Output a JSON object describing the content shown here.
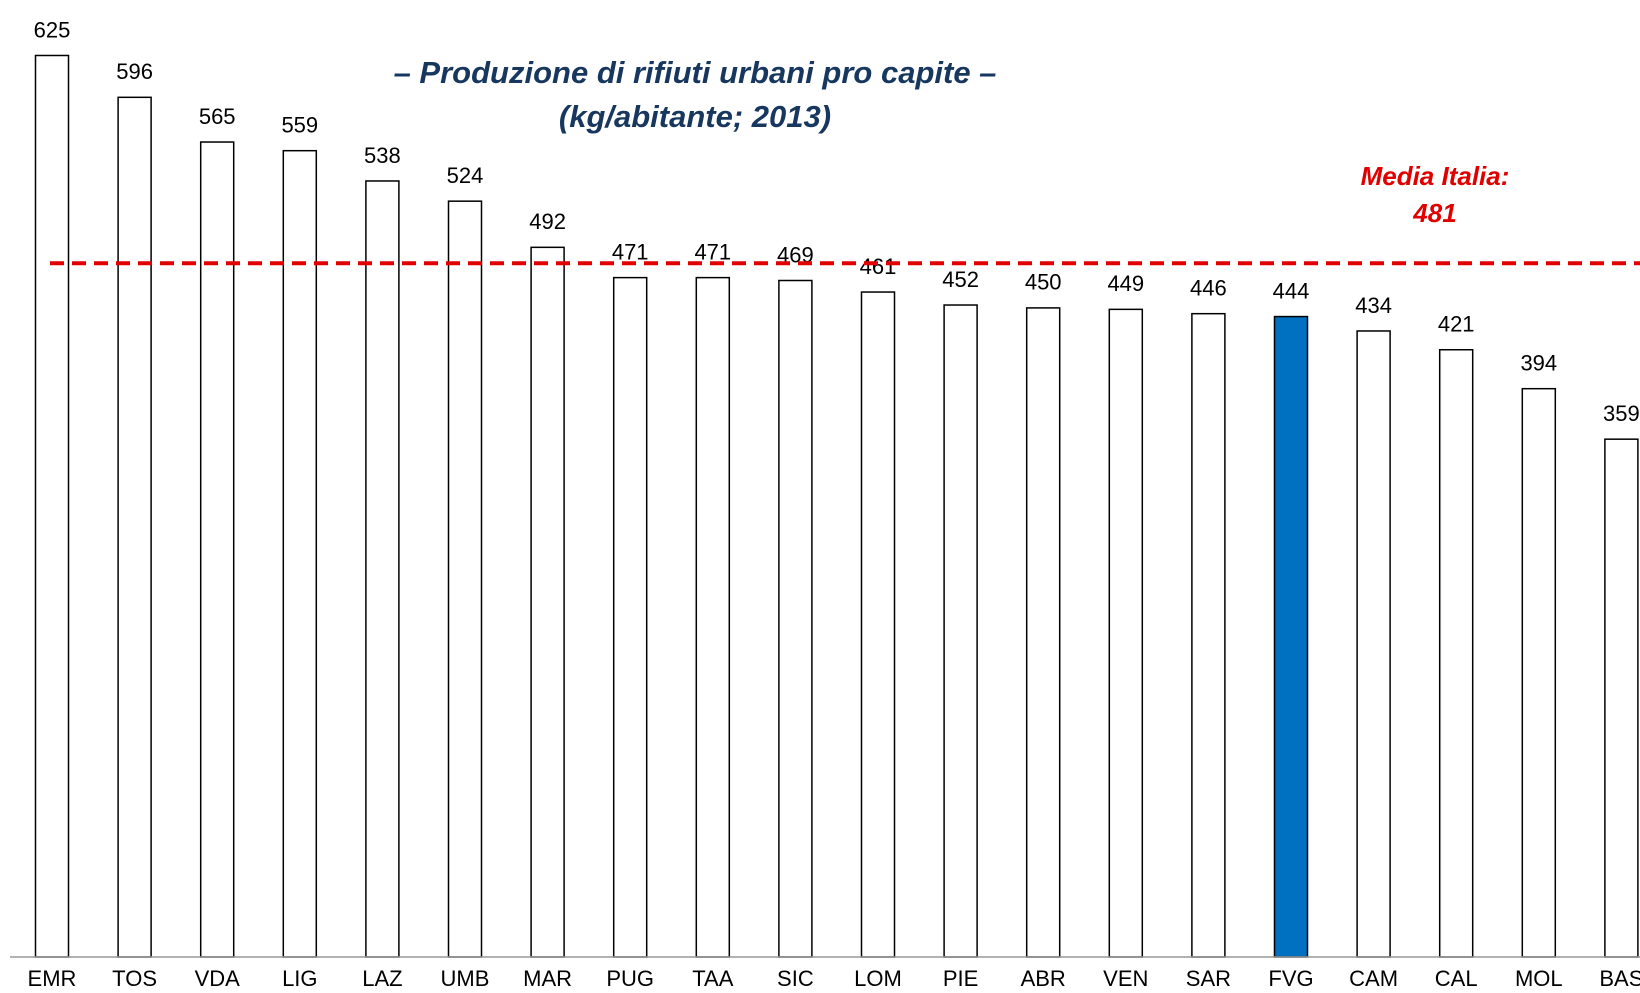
{
  "chart_data": {
    "type": "bar",
    "title": "– Produzione di rifiuti urbani pro capite –",
    "subtitle": "(kg/abitante; 2013)",
    "categories": [
      "EMR",
      "TOS",
      "VDA",
      "LIG",
      "LAZ",
      "UMB",
      "MAR",
      "PUG",
      "TAA",
      "SIC",
      "LOM",
      "PIE",
      "ABR",
      "VEN",
      "SAR",
      "FVG",
      "CAM",
      "CAL",
      "MOL",
      "BAS"
    ],
    "values": [
      625,
      596,
      565,
      559,
      538,
      524,
      492,
      471,
      471,
      469,
      461,
      452,
      450,
      449,
      446,
      444,
      434,
      421,
      394,
      359
    ],
    "colors": [
      "#ffffff",
      "#ffffff",
      "#ffffff",
      "#ffffff",
      "#ffffff",
      "#ffffff",
      "#ffffff",
      "#ffffff",
      "#ffffff",
      "#ffffff",
      "#ffffff",
      "#ffffff",
      "#ffffff",
      "#ffffff",
      "#ffffff",
      "#0070c0",
      "#ffffff",
      "#ffffff",
      "#ffffff",
      "#ffffff"
    ],
    "ylim": [
      0,
      660
    ],
    "reference_line": {
      "label": "Media Italia:",
      "value": 481,
      "color": "#e00000"
    }
  }
}
